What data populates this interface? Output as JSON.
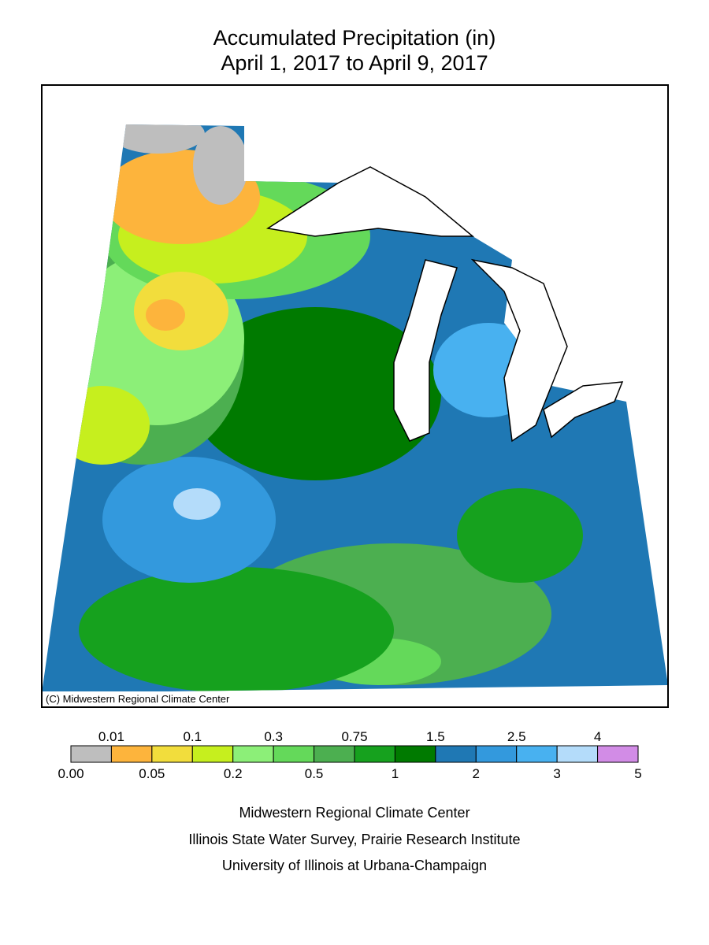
{
  "header": {
    "title_lines": [
      "Accumulated Precipitation (in)",
      "April 1, 2017 to April 9, 2017"
    ]
  },
  "map": {
    "copyright": "(C) Midwestern Regional Climate Center"
  },
  "legend": {
    "colors": [
      "#bebebe",
      "#fdb43c",
      "#f2dd3c",
      "#c6ef1e",
      "#8cef78",
      "#64d95a",
      "#4caf50",
      "#16a11e",
      "#007a00",
      "#1f78b4",
      "#3399dd",
      "#48b1f0",
      "#b4dcfa",
      "#d28ce6"
    ],
    "upper_labels": [
      "0.01",
      "0.1",
      "0.3",
      "0.75",
      "1.5",
      "2.5",
      "4"
    ],
    "lower_labels": [
      "0.00",
      "0.05",
      "0.2",
      "0.5",
      "1",
      "2",
      "3",
      "5"
    ]
  },
  "footer": {
    "lines": [
      "Midwestern Regional Climate Center",
      "Illinois State Water Survey, Prairie Research Institute",
      "University of Illinois at Urbana-Champaign"
    ]
  }
}
